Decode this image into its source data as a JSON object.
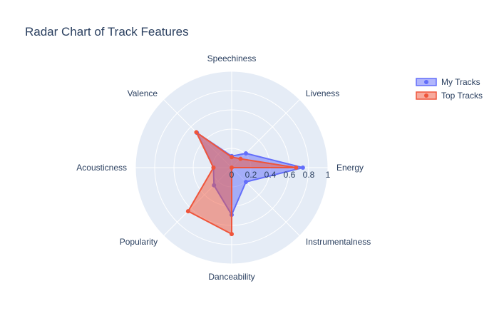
{
  "chart_data": {
    "type": "radar",
    "title": "Radar Chart of Track Features",
    "axes": [
      "Energy",
      "Liveness",
      "Speechiness",
      "Valence",
      "Acousticness",
      "Popularity",
      "Danceability",
      "Instrumentalness"
    ],
    "radial_ticks": [
      "0",
      "0.2",
      "0.4",
      "0.6",
      "0.8",
      "1"
    ],
    "radial_range": [
      0,
      1
    ],
    "grid": true,
    "legend_position": "top-right",
    "series": [
      {
        "name": "My Tracks",
        "color": "#636efa",
        "values": [
          0.74,
          0.21,
          0.12,
          0.51,
          0.19,
          0.26,
          0.49,
          0.21
        ]
      },
      {
        "name": "Top Tracks",
        "color": "#ef553b",
        "values": [
          0.67,
          0.13,
          0.11,
          0.52,
          0.19,
          0.64,
          0.69,
          0.0
        ]
      }
    ]
  }
}
